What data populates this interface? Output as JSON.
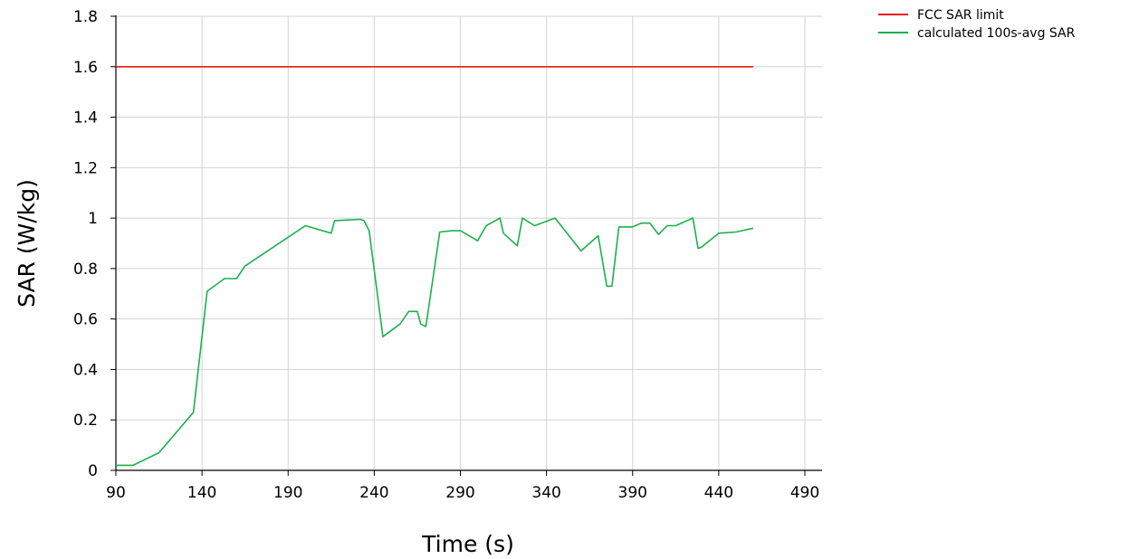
{
  "chart_data": {
    "type": "line",
    "title": "",
    "xlabel": "Time (s)",
    "ylabel": "SAR (W/kg)",
    "xlim": [
      90,
      500
    ],
    "ylim": [
      0,
      1.8
    ],
    "xticks": [
      90,
      140,
      190,
      240,
      290,
      340,
      390,
      440,
      490
    ],
    "yticks": [
      0,
      0.2,
      0.4,
      0.6,
      0.8,
      1,
      1.2,
      1.4,
      1.6,
      1.8
    ],
    "ytick_labels": [
      "0",
      "0.2",
      "0.4",
      "0.6",
      "0.8",
      "1",
      "1.2",
      "1.4",
      "1.6",
      "1.8"
    ],
    "grid": true,
    "legend_position": "top-right",
    "series": [
      {
        "name": "FCC SAR limit",
        "color": "#e8191f",
        "x": [
          90,
          460
        ],
        "y": [
          1.6,
          1.6
        ]
      },
      {
        "name": "calculated 100s-avg SAR",
        "color": "#1db04c",
        "x": [
          90,
          100,
          115,
          125,
          135,
          143,
          153,
          160,
          165,
          200,
          215,
          217,
          232,
          234,
          237,
          245,
          255,
          260,
          265,
          267,
          270,
          278,
          285,
          290,
          300,
          305,
          313,
          315,
          323,
          326,
          333,
          345,
          360,
          370,
          375,
          378,
          382,
          390,
          395,
          400,
          405,
          410,
          415,
          425,
          428,
          430,
          440,
          450,
          460
        ],
        "y": [
          0.02,
          0.02,
          0.07,
          0.15,
          0.23,
          0.71,
          0.76,
          0.76,
          0.81,
          0.97,
          0.94,
          0.99,
          0.995,
          0.99,
          0.95,
          0.53,
          0.58,
          0.63,
          0.63,
          0.58,
          0.57,
          0.945,
          0.95,
          0.95,
          0.91,
          0.97,
          1.0,
          0.94,
          0.89,
          1.0,
          0.97,
          1.0,
          0.87,
          0.93,
          0.73,
          0.73,
          0.965,
          0.965,
          0.98,
          0.98,
          0.935,
          0.97,
          0.97,
          1.0,
          0.88,
          0.885,
          0.94,
          0.945,
          0.96
        ]
      }
    ]
  }
}
